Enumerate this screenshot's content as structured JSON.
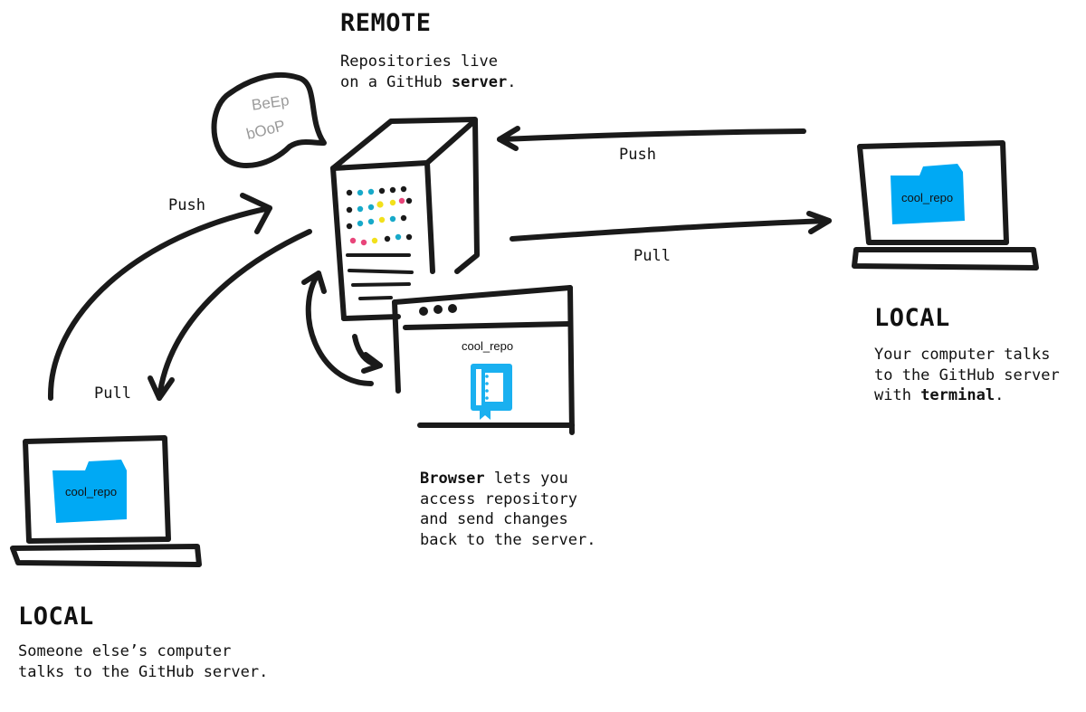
{
  "remote": {
    "heading": "REMOTE",
    "desc_line1": "Repositories live",
    "desc_line2_pre": "on a GitHub ",
    "desc_line2_bold": "server",
    "desc_line2_post": "."
  },
  "local_right": {
    "heading": "LOCAL",
    "desc_line1": "Your computer talks",
    "desc_line2": "to the GitHub server",
    "desc_line3_pre": "with ",
    "desc_line3_bold": "terminal",
    "desc_line3_post": ".",
    "repo_label": "cool_repo"
  },
  "local_left": {
    "heading": "LOCAL",
    "desc_line1": "Someone else’s computer",
    "desc_line2": "talks to the GitHub server.",
    "repo_label": "cool_repo"
  },
  "browser": {
    "repo_label": "cool_repo",
    "desc_line1_bold": "Browser",
    "desc_line1_post": " lets you",
    "desc_line2": "access repository",
    "desc_line3": "and send changes",
    "desc_line4": "back to the server."
  },
  "server_speech": {
    "line1": "BeEp",
    "line2": "bOoP"
  },
  "arrows": {
    "right_push": "Push",
    "right_pull": "Pull",
    "left_push": "Push",
    "left_pull": "Pull"
  },
  "colors": {
    "ink": "#1a1a1a",
    "folder_blue": "#00a9f4",
    "book_blue": "#1ab0f0",
    "led_cyan": "#17a9c9",
    "led_yellow": "#f2e01b",
    "led_pink": "#e8457a",
    "speech_text": "#9a9a9a"
  }
}
